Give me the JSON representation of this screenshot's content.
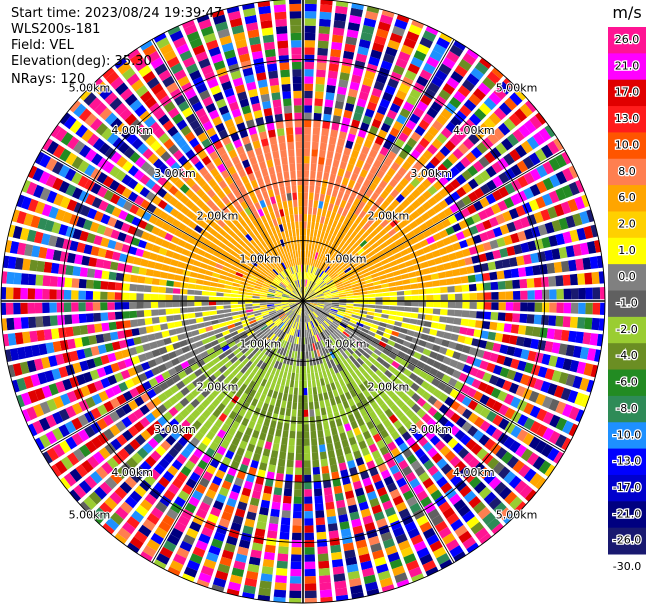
{
  "header": {
    "start_time": "Start time: 2023/08/24 19:39:47",
    "instrument": "WLS200s-181",
    "field": "Field: VEL",
    "elevation": "Elevation(deg): 35.30",
    "nrays": "NRays: 120"
  },
  "chart_data": {
    "type": "heatmap",
    "projection": "polar PPI",
    "field": "VEL",
    "nrays": 120,
    "range_rings_km": [
      1.0,
      2.0,
      3.0,
      4.0,
      5.0
    ],
    "range_ring_labels": [
      "1.00km",
      "2.00km",
      "3.00km",
      "4.00km",
      "5.00km"
    ],
    "max_range_km": 5.0,
    "spoke_interval_deg": 30,
    "colorbar": {
      "unit": "m/s",
      "tick_labels": [
        "26.0",
        "21.0",
        "17.0",
        "13.0",
        "10.0",
        "8.0",
        "6.0",
        "2.0",
        "1.0",
        "0.0",
        "-1.0",
        "-2.0",
        "-4.0",
        "-6.0",
        "-8.0",
        "-10.0",
        "-13.0",
        "-17.0",
        "-21.0",
        "-26.0",
        "-30.0"
      ],
      "colors": [
        "#ff1493",
        "#ff00ff",
        "#e00000",
        "#ff1c1c",
        "#ff5500",
        "#ff7f50",
        "#ffa500",
        "#ffd000",
        "#ffff00",
        "#808080",
        "#606060",
        "#9acd32",
        "#6b8e23",
        "#228b22",
        "#2e8b57",
        "#1e90ff",
        "#0000ff",
        "#0000cd",
        "#000080",
        "#191970"
      ]
    },
    "pattern": {
      "north_half": "positive velocities 1-8 m/s (yellow to orange), strongest toward north",
      "south_half": "negative velocities -1 to -6 m/s (olive to green), strongest toward south",
      "near_center": "about 0 m/s (grey)",
      "beyond_3km": "noisy / random values"
    }
  }
}
